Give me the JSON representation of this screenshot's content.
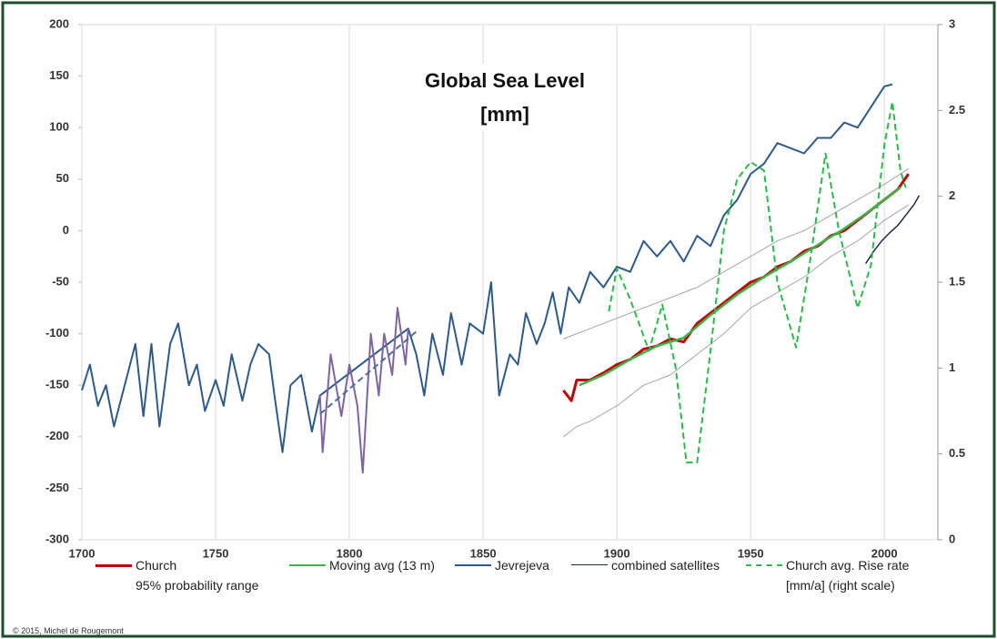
{
  "chart_data": {
    "type": "line",
    "title": "Global Sea Level\n[mm]",
    "credit": "© 2015, Michel de Rougemont",
    "xlim": [
      1700,
      2020
    ],
    "xticks": [
      1700,
      1750,
      1800,
      1850,
      1900,
      1950,
      2000
    ],
    "ylim": [
      -300,
      200
    ],
    "yticks": [
      -300,
      -250,
      -200,
      -150,
      -100,
      -50,
      0,
      50,
      100,
      150,
      200
    ],
    "y2lim": [
      0,
      3
    ],
    "y2ticks": [
      0,
      0.5,
      1,
      1.5,
      2,
      2.5,
      3
    ],
    "grid": true,
    "series": [
      {
        "name": "Church",
        "color": "#c00000",
        "width": 3,
        "x": [
          1880,
          1883,
          1885,
          1890,
          1895,
          1900,
          1905,
          1910,
          1915,
          1920,
          1925,
          1930,
          1935,
          1940,
          1945,
          1950,
          1955,
          1960,
          1965,
          1970,
          1975,
          1980,
          1985,
          1990,
          1995,
          2000,
          2005,
          2009
        ],
        "values": [
          -155,
          -165,
          -145,
          -145,
          -138,
          -130,
          -125,
          -115,
          -112,
          -105,
          -108,
          -90,
          -80,
          -70,
          -60,
          -50,
          -45,
          -35,
          -30,
          -20,
          -15,
          -5,
          0,
          10,
          20,
          30,
          40,
          55
        ]
      },
      {
        "name": "95% probability range",
        "color": "#a6a6a6",
        "width": 1,
        "kind": "range",
        "x": [
          1880,
          1885,
          1890,
          1900,
          1910,
          1920,
          1930,
          1940,
          1950,
          1960,
          1970,
          1980,
          1990,
          2000,
          2009
        ],
        "upper": [
          -105,
          -100,
          -95,
          -85,
          -75,
          -65,
          -55,
          -40,
          -25,
          -10,
          0,
          15,
          30,
          45,
          60
        ],
        "lower": [
          -200,
          -190,
          -185,
          -170,
          -150,
          -140,
          -120,
          -100,
          -75,
          -60,
          -45,
          -25,
          -10,
          10,
          25
        ]
      },
      {
        "name": "Moving avg (13 m)",
        "color": "#3cb44b",
        "width": 2.5,
        "x": [
          1886,
          1895,
          1905,
          1915,
          1925,
          1935,
          1945,
          1955,
          1965,
          1975,
          1985,
          1995,
          2006
        ],
        "values": [
          -150,
          -140,
          -125,
          -112,
          -104,
          -82,
          -62,
          -45,
          -30,
          -14,
          2,
          20,
          42
        ]
      },
      {
        "name": "Jevrejeva",
        "color": "#2e5a8a",
        "width": 2,
        "x": [
          1700,
          1703,
          1706,
          1709,
          1712,
          1716,
          1720,
          1723,
          1726,
          1729,
          1733,
          1736,
          1740,
          1743,
          1746,
          1750,
          1753,
          1756,
          1760,
          1763,
          1766,
          1770,
          1772,
          1775,
          1778,
          1782,
          1786,
          1789,
          1822,
          1825,
          1828,
          1831,
          1835,
          1838,
          1842,
          1845,
          1850,
          1853,
          1856,
          1860,
          1863,
          1866,
          1870,
          1873,
          1876,
          1879,
          1882,
          1886,
          1890,
          1895,
          1900,
          1905,
          1910,
          1915,
          1920,
          1925,
          1930,
          1935,
          1940,
          1945,
          1950,
          1955,
          1960,
          1965,
          1970,
          1975,
          1980,
          1985,
          1990,
          1995,
          2000,
          2003
        ],
        "values": [
          -155,
          -130,
          -170,
          -150,
          -190,
          -150,
          -110,
          -180,
          -110,
          -190,
          -110,
          -90,
          -150,
          -130,
          -175,
          -145,
          -170,
          -120,
          -165,
          -130,
          -110,
          -120,
          -160,
          -215,
          -150,
          -140,
          -195,
          -160,
          -95,
          -120,
          -160,
          -100,
          -140,
          -80,
          -130,
          -90,
          -100,
          -50,
          -160,
          -120,
          -130,
          -80,
          -110,
          -90,
          -60,
          -100,
          -55,
          -70,
          -40,
          -55,
          -35,
          -40,
          -10,
          -25,
          -10,
          -30,
          -5,
          -15,
          15,
          30,
          55,
          65,
          85,
          80,
          75,
          90,
          90,
          105,
          100,
          120,
          140,
          142
        ]
      },
      {
        "name": "combined satellites",
        "color": "#1f2a44",
        "width": 1.5,
        "x": [
          1993,
          1996,
          1999,
          2002,
          2005,
          2008,
          2011,
          2013
        ],
        "values": [
          -32,
          -20,
          -10,
          -2,
          5,
          15,
          25,
          34
        ]
      },
      {
        "name": "Church avg. Rise rate\n[mm/a] (right scale)",
        "color": "#2db84b",
        "width": 2,
        "dash": true,
        "axis": "y2",
        "x": [
          1897,
          1900,
          1905,
          1912,
          1917,
          1922,
          1926,
          1930,
          1935,
          1940,
          1945,
          1950,
          1955,
          1960,
          1967,
          1972,
          1978,
          1983,
          1990,
          1995,
          2000,
          2003,
          2006,
          2008
        ],
        "values": [
          1.33,
          1.58,
          1.4,
          1.1,
          1.37,
          1.0,
          0.45,
          0.45,
          1.1,
          1.8,
          2.1,
          2.2,
          2.15,
          1.5,
          1.12,
          1.6,
          2.25,
          1.8,
          1.35,
          1.6,
          2.3,
          2.55,
          2.15,
          2.05
        ]
      },
      {
        "color": "#8064a2",
        "width": 2,
        "x": [
          1789,
          1790,
          1793,
          1797,
          1800,
          1803,
          1805,
          1808,
          1811,
          1813,
          1816,
          1818,
          1821,
          1822
        ],
        "values": [
          -160,
          -215,
          -120,
          -180,
          -130,
          -170,
          -235,
          -100,
          -160,
          -100,
          -140,
          -75,
          -130,
          -95
        ]
      },
      {
        "color": "#4f6d9a",
        "width": 2,
        "dash": true,
        "x": [
          1789,
          1825
        ],
        "values": [
          -178,
          -98
        ]
      }
    ]
  }
}
